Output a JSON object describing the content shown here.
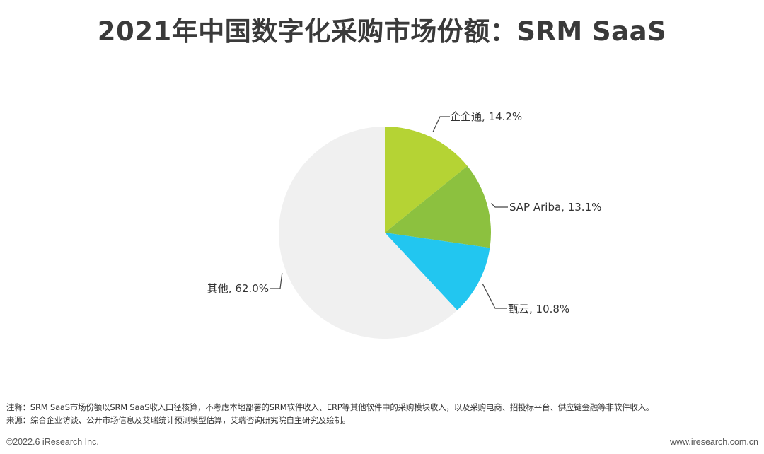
{
  "title": "2021年中国数字化采购市场份额：SRM SaaS",
  "chart_data": {
    "type": "pie",
    "title": "2021年中国数字化采购市场份额：SRM SaaS",
    "slices": [
      {
        "name": "企企通",
        "value": 14.2,
        "label": "企企通, 14.2%",
        "color": "#b5d334"
      },
      {
        "name": "SAP Ariba",
        "value": 13.1,
        "label": "SAP Ariba, 13.1%",
        "color": "#8cc13f"
      },
      {
        "name": "甄云",
        "value": 10.8,
        "label": "甄云, 10.8%",
        "color": "#22c6f0"
      },
      {
        "name": "其他",
        "value": 62.0,
        "label": "其他, 62.0%",
        "color": "#f0f0f0"
      }
    ],
    "start": "12 o'clock",
    "direction": "clockwise"
  },
  "notes": {
    "line1": "注释：SRM SaaS市场份额以SRM SaaS收入口径核算，不考虑本地部署的SRM软件收入、ERP等其他软件中的采购模块收入，以及采购电商、招投标平台、供应链金融等非软件收入。",
    "line2": "来源：综合企业访谈、公开市场信息及艾瑞统计预测模型估算，艾瑞咨询研究院自主研究及绘制。"
  },
  "footer": {
    "copyright": "©2022.6 iResearch Inc.",
    "website": "www.iresearch.com.cn"
  }
}
